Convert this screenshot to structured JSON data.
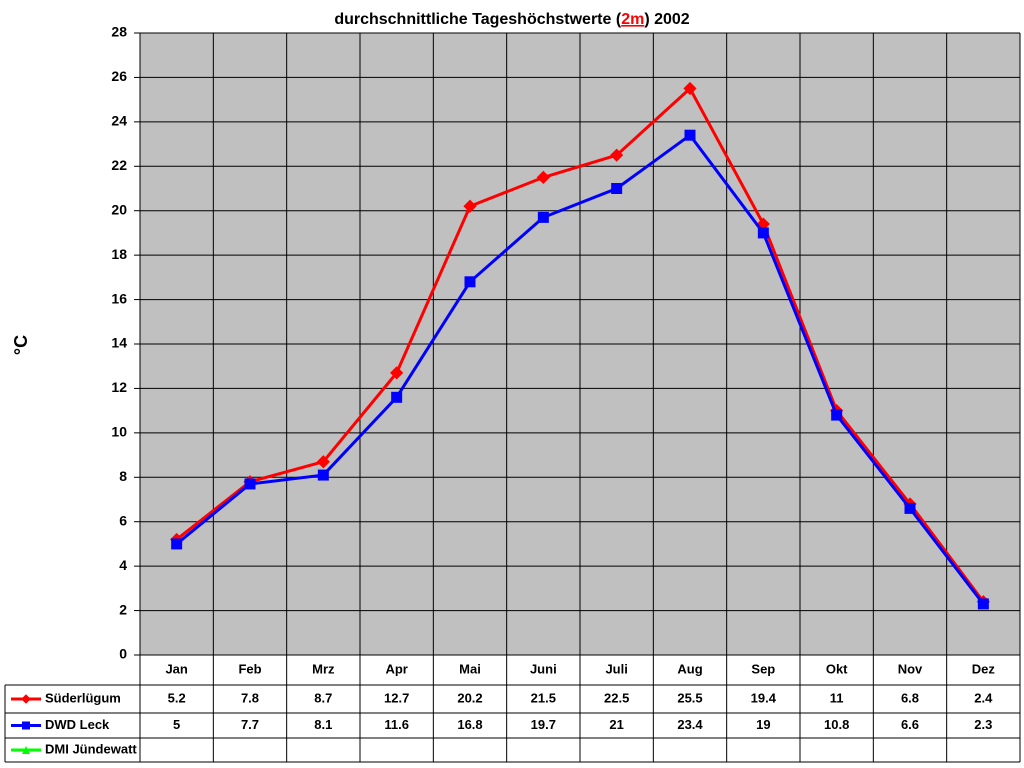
{
  "chart_data": {
    "type": "line",
    "title_parts": [
      "durchschnittliche Tageshöchstwerte (",
      "2m",
      ") 2002"
    ],
    "y_label": "°C",
    "categories": [
      "Jan",
      "Feb",
      "Mrz",
      "Apr",
      "Mai",
      "Juni",
      "Juli",
      "Aug",
      "Sep",
      "Okt",
      "Nov",
      "Dez"
    ],
    "series": [
      {
        "name": "Süderlügum",
        "color": "#ff0000",
        "marker": "diamond",
        "values": [
          5.2,
          7.8,
          8.7,
          12.7,
          20.2,
          21.5,
          22.5,
          25.5,
          19.4,
          11,
          6.8,
          2.4
        ]
      },
      {
        "name": "DWD Leck",
        "color": "#0000ff",
        "marker": "square",
        "values": [
          5,
          7.7,
          8.1,
          11.6,
          16.8,
          19.7,
          21,
          23.4,
          19,
          10.8,
          6.6,
          2.3
        ]
      },
      {
        "name": "DMI Jündewatt",
        "color": "#00ff00",
        "marker": "triangle",
        "values": [
          null,
          null,
          null,
          null,
          null,
          null,
          null,
          null,
          null,
          null,
          null,
          null
        ]
      }
    ],
    "ylim": [
      0,
      28
    ],
    "yticks": [
      0,
      2,
      4,
      6,
      8,
      10,
      12,
      14,
      16,
      18,
      20,
      22,
      24,
      26,
      28
    ],
    "grid": true
  }
}
